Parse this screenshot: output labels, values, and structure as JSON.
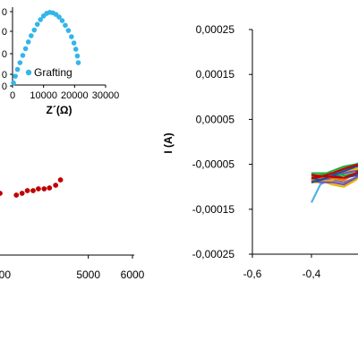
{
  "chart_data": [
    {
      "type": "scatter",
      "panel": "inset",
      "xlabel": "Z´(Ω)",
      "ylabel": "",
      "xlim": [
        0,
        30000
      ],
      "ylim": [
        0,
        15000
      ],
      "x_ticks": [
        "0",
        "10000",
        "20000",
        "30000"
      ],
      "y_ticks": [
        "0",
        "0",
        "0",
        "0",
        "0"
      ],
      "grid": false,
      "legend_position": "inside-bottom",
      "series": [
        {
          "name": "Grafting",
          "color": "#33b5ea",
          "x": [
            300,
            900,
            1600,
            2400,
            3300,
            4200,
            5100,
            6000,
            7000,
            8000,
            9000,
            10000,
            11000,
            12000,
            13000,
            14000,
            15000,
            16000,
            17000,
            18000,
            19000,
            19800,
            20400,
            20900,
            21200
          ],
          "y": [
            400,
            1700,
            3000,
            4300,
            5700,
            7000,
            8300,
            9500,
            10600,
            11700,
            12600,
            13300,
            13800,
            14000,
            13900,
            13600,
            13100,
            12400,
            11500,
            10500,
            9300,
            8100,
            6900,
            5600,
            4300
          ]
        }
      ]
    },
    {
      "type": "scatter",
      "panel": "left-main",
      "xlabel": "",
      "ylabel": "",
      "xlim": [
        3000,
        6000
      ],
      "x_ticks": [
        "5000",
        "6000"
      ],
      "x_tick_partial": "00",
      "grid": false,
      "series": [
        {
          "name": "",
          "color": "#c00000",
          "x": [
            3000,
            3370,
            3500,
            3620,
            3750,
            3870,
            4000,
            4120,
            4260,
            4370
          ],
          "y": [
            216,
            218,
            216,
            213,
            213,
            211,
            211,
            210,
            207,
            201
          ]
        }
      ]
    },
    {
      "type": "line",
      "panel": "right-main",
      "xlabel": "",
      "ylabel": "I (A)",
      "xlim": [
        -0.6,
        -0.2
      ],
      "ylim": [
        -0.00025,
        0.00025
      ],
      "x_ticks": [
        "-0,6",
        "-0,4"
      ],
      "y_ticks": [
        "0,00025",
        "0,00015",
        "0,00005",
        "-0,00005",
        "-0,00015",
        "-0,00025"
      ],
      "grid": false,
      "series": [
        {
          "name": "",
          "color": "#4fb0e8",
          "x": [
            -0.4,
            -0.37,
            -0.33,
            -0.29,
            -0.25,
            -0.21,
            -0.25,
            -0.29,
            -0.33,
            -0.37,
            -0.4
          ],
          "y": [
            -0.000135,
            -9.5e-05,
            -8e-05,
            -6.5e-05,
            -5.5e-05,
            -4.5e-05,
            -8.5e-05,
            -9e-05,
            -8.5e-05,
            -8e-05,
            -7e-05
          ]
        },
        {
          "name": "",
          "color": "#808080",
          "x": [
            -0.4,
            -0.37,
            -0.33,
            -0.29,
            -0.25,
            -0.21,
            -0.25,
            -0.29,
            -0.33,
            -0.37,
            -0.4
          ],
          "y": [
            -8.5e-05,
            -8e-05,
            -7.5e-05,
            -6.5e-05,
            -6e-05,
            -5e-05,
            -8e-05,
            -9e-05,
            -8.5e-05,
            -8e-05,
            -7e-05
          ]
        },
        {
          "name": "",
          "color": "#e6b800",
          "x": [
            -0.4,
            -0.37,
            -0.33,
            -0.29,
            -0.25,
            -0.21,
            -0.25,
            -0.29,
            -0.33,
            -0.37,
            -0.4
          ],
          "y": [
            -9e-05,
            -9e-05,
            -8.5e-05,
            -7e-05,
            -6e-05,
            -5.5e-05,
            -8.5e-05,
            -0.0001,
            -9.5e-05,
            -8.5e-05,
            -8e-05
          ]
        },
        {
          "name": "",
          "color": "#7f4fb0",
          "x": [
            -0.4,
            -0.37,
            -0.33,
            -0.29,
            -0.25,
            -0.21,
            -0.25,
            -0.29,
            -0.33,
            -0.37,
            -0.4
          ],
          "y": [
            -9e-05,
            -8.5e-05,
            -8e-05,
            -7e-05,
            -6.5e-05,
            -6e-05,
            -8e-05,
            -9.5e-05,
            -9e-05,
            -9e-05,
            -8.5e-05
          ]
        },
        {
          "name": "",
          "color": "#ff6a00",
          "x": [
            -0.4,
            -0.37,
            -0.33,
            -0.29,
            -0.25,
            -0.21,
            -0.25,
            -0.29,
            -0.33,
            -0.37,
            -0.4
          ],
          "y": [
            -8.5e-05,
            -8e-05,
            -7e-05,
            -6e-05,
            -5.5e-05,
            -4.5e-05,
            -7e-05,
            -8.5e-05,
            -8e-05,
            -7.5e-05,
            -7.5e-05
          ]
        },
        {
          "name": "",
          "color": "#20b040",
          "x": [
            -0.4,
            -0.37,
            -0.33,
            -0.29,
            -0.25,
            -0.21,
            -0.25,
            -0.29,
            -0.33,
            -0.37,
            -0.4
          ],
          "y": [
            -8e-05,
            -7.5e-05,
            -6.5e-05,
            -5.5e-05,
            -5e-05,
            -4e-05,
            -7e-05,
            -7.5e-05,
            -7e-05,
            -7e-05,
            -7e-05
          ]
        },
        {
          "name": "",
          "color": "#1f4e9e",
          "x": [
            -0.4,
            -0.37,
            -0.33,
            -0.29,
            -0.25,
            -0.21,
            -0.25,
            -0.29,
            -0.33,
            -0.37,
            -0.4
          ],
          "y": [
            -9e-05,
            -8.5e-05,
            -7.5e-05,
            -6.5e-05,
            -5.5e-05,
            -5e-05,
            -7.5e-05,
            -8e-05,
            -7.5e-05,
            -8.5e-05,
            -8e-05
          ]
        },
        {
          "name": "",
          "color": "#c00000",
          "x": [
            -0.4,
            -0.37,
            -0.33,
            -0.29,
            -0.25,
            -0.21,
            -0.25,
            -0.29,
            -0.33,
            -0.37,
            -0.4
          ],
          "y": [
            -8e-05,
            -7.8e-05,
            -7e-05,
            -6e-05,
            -5.2e-05,
            -4.6e-05,
            -7e-05,
            -8e-05,
            -7.8e-05,
            -7.6e-05,
            -7.4e-05
          ]
        }
      ]
    }
  ]
}
